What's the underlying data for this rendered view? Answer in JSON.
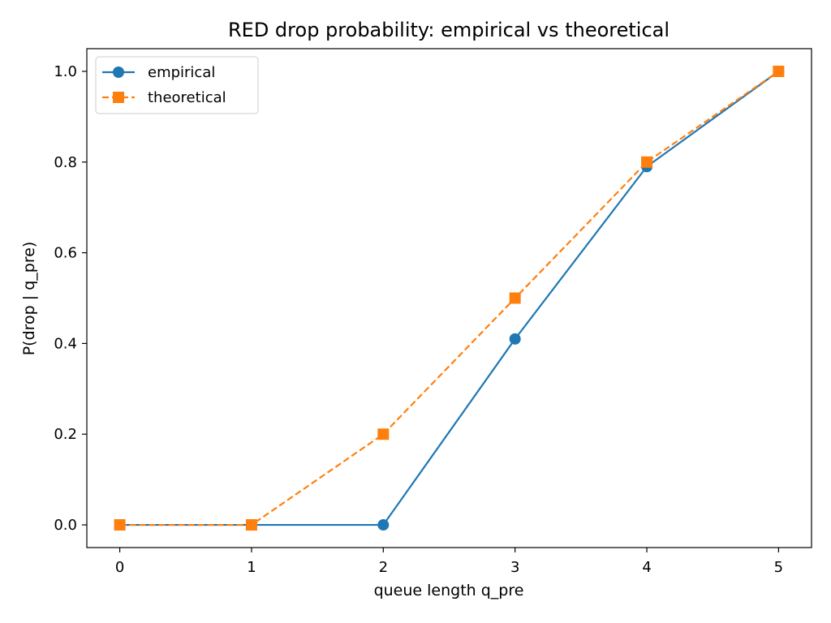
{
  "chart_data": {
    "type": "line",
    "title": "RED drop probability: empirical vs theoretical",
    "xlabel": "queue length q_pre",
    "ylabel": "P(drop | q_pre)",
    "x": [
      0,
      1,
      2,
      3,
      4,
      5
    ],
    "xlim": [
      -0.25,
      5.25
    ],
    "ylim": [
      -0.05,
      1.05
    ],
    "xticks": [
      "0",
      "1",
      "2",
      "3",
      "4",
      "5"
    ],
    "yticks": [
      "0.0",
      "0.2",
      "0.4",
      "0.6",
      "0.8",
      "1.0"
    ],
    "grid": false,
    "legend_position": "upper-left",
    "series": [
      {
        "name": "empirical",
        "values": [
          0.0,
          0.0,
          0.0,
          0.41,
          0.79,
          1.0
        ],
        "color": "#1f77b4",
        "marker": "circle",
        "linestyle": "solid"
      },
      {
        "name": "theoretical",
        "values": [
          0.0,
          0.0,
          0.2,
          0.5,
          0.8,
          1.0
        ],
        "color": "#ff7f0e",
        "marker": "square",
        "linestyle": "dashed"
      }
    ]
  }
}
